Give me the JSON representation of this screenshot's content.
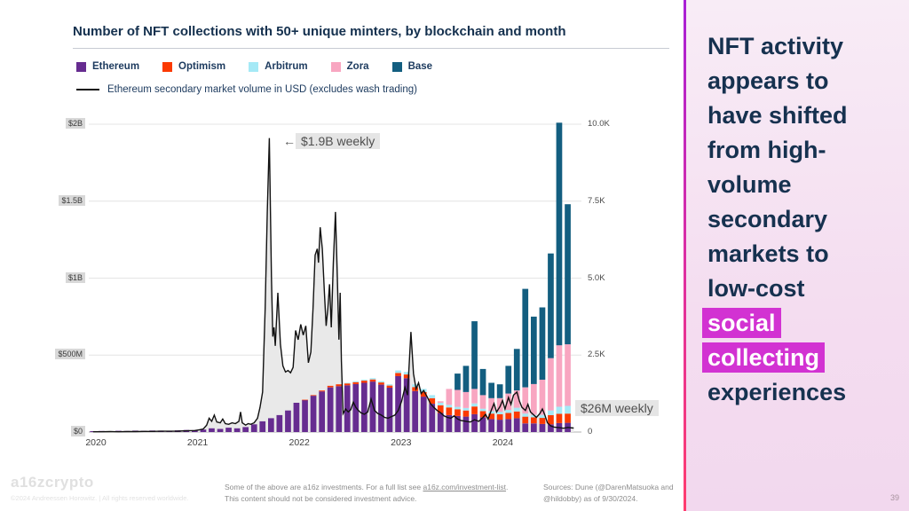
{
  "slide": {
    "logo": "a16zcrypto",
    "copyright": "©2024 Andreessen Horowitz.  |  All rights reserved worldwide.",
    "disclaimer_part1": "Some of the above are a16z investments. For a full list see ",
    "disclaimer_link": "a16z.com/investment-list",
    "disclaimer_part2": ".",
    "disclaimer_line2": "This content should not be considered investment advice.",
    "sources": "Sources: Dune (@DarenMatsuoka and @hildobby) as of 9/30/2024.",
    "page_number": "39"
  },
  "panel": {
    "lines": [
      {
        "text": "NFT activity",
        "highlight": false
      },
      {
        "text": "appears to",
        "highlight": false
      },
      {
        "text": "have shifted",
        "highlight": false
      },
      {
        "text": "from high-",
        "highlight": false
      },
      {
        "text": "volume",
        "highlight": false
      },
      {
        "text": "secondary",
        "highlight": false
      },
      {
        "text": "markets to",
        "highlight": false
      },
      {
        "text": "low-cost",
        "highlight": false
      },
      {
        "text": "social",
        "highlight": true
      },
      {
        "text": "collecting",
        "highlight": true
      },
      {
        "text": "experiences",
        "highlight": false
      }
    ],
    "highlight_color": "#d232d2",
    "text_color": "#16314f"
  },
  "chart_data": {
    "type": "combo-stacked-bar-line",
    "title": "Number of NFT collections with 50+ unique minters, by blockchain and month",
    "time_range": {
      "start": "2020-01",
      "end": "2024-09",
      "months": 57
    },
    "x_axis": {
      "labels": [
        "2020",
        "2021",
        "2022",
        "2023",
        "2024"
      ]
    },
    "left_axis": {
      "title": "Ethereum secondary volume (USD)",
      "ticks": [
        "$2B",
        "$1.5B",
        "$1B",
        "$500M",
        "$0"
      ],
      "max_musd": 2000
    },
    "right_axis": {
      "title": "NFT collections with 50+ unique minters",
      "ticks": [
        "10.0K",
        "7.5K",
        "5.0K",
        "2.5K",
        "0"
      ],
      "max_count": 10000
    },
    "legend": [
      {
        "label": "Ethereum",
        "color": "#662c90"
      },
      {
        "label": "Optimism",
        "color": "#fb3a02"
      },
      {
        "label": "Arbitrum",
        "color": "#a5e9f6"
      },
      {
        "label": "Zora",
        "color": "#f8a6c1"
      },
      {
        "label": "Base",
        "color": "#135e80"
      }
    ],
    "line_legend": {
      "label": "Ethereum secondary market volume in USD (excludes wash trading)",
      "color": "#111111",
      "area_fill": "#e9e9e9"
    },
    "annotations": [
      {
        "text": "$1.9B weekly",
        "points_to": "2021 line peak"
      },
      {
        "text": "$26M weekly",
        "points_to": "latest line value"
      }
    ],
    "series": [
      {
        "name": "Ethereum",
        "color": "#662c90",
        "values": [
          30,
          35,
          30,
          40,
          35,
          45,
          40,
          50,
          45,
          40,
          55,
          65,
          60,
          80,
          120,
          100,
          140,
          120,
          160,
          250,
          350,
          450,
          550,
          700,
          950,
          1040,
          1180,
          1320,
          1450,
          1490,
          1520,
          1560,
          1600,
          1640,
          1540,
          1440,
          1820,
          1750,
          1330,
          1150,
          920,
          620,
          550,
          520,
          500,
          580,
          480,
          420,
          400,
          420,
          450,
          280,
          280,
          260,
          250,
          290,
          300
        ]
      },
      {
        "name": "Optimism",
        "color": "#fb3a02",
        "values": [
          0,
          0,
          0,
          0,
          0,
          0,
          0,
          0,
          0,
          0,
          0,
          0,
          0,
          0,
          0,
          0,
          0,
          0,
          0,
          0,
          0,
          0,
          0,
          0,
          0,
          10,
          20,
          30,
          50,
          60,
          60,
          60,
          70,
          70,
          70,
          70,
          100,
          120,
          130,
          150,
          180,
          250,
          250,
          220,
          200,
          250,
          200,
          180,
          180,
          200,
          220,
          220,
          200,
          200,
          300,
          300,
          300
        ]
      },
      {
        "name": "Arbitrum",
        "color": "#a5e9f6",
        "values": [
          0,
          0,
          0,
          0,
          0,
          0,
          0,
          0,
          0,
          0,
          0,
          0,
          0,
          0,
          0,
          0,
          0,
          0,
          0,
          0,
          0,
          0,
          0,
          0,
          0,
          0,
          0,
          0,
          0,
          0,
          20,
          30,
          30,
          40,
          40,
          40,
          80,
          80,
          90,
          100,
          100,
          80,
          80,
          80,
          80,
          100,
          80,
          80,
          80,
          100,
          120,
          100,
          80,
          100,
          150,
          230,
          250
        ]
      },
      {
        "name": "Zora",
        "color": "#f8a6c1",
        "values": [
          0,
          0,
          0,
          0,
          0,
          0,
          0,
          0,
          0,
          0,
          0,
          0,
          0,
          0,
          0,
          0,
          0,
          0,
          0,
          0,
          0,
          0,
          0,
          0,
          0,
          0,
          0,
          0,
          0,
          0,
          0,
          0,
          0,
          0,
          0,
          0,
          0,
          0,
          0,
          0,
          0,
          50,
          520,
          550,
          520,
          470,
          440,
          420,
          440,
          530,
          560,
          850,
          1000,
          1140,
          1700,
          2000,
          2000
        ]
      },
      {
        "name": "Base",
        "color": "#135e80",
        "values": [
          0,
          0,
          0,
          0,
          0,
          0,
          0,
          0,
          0,
          0,
          0,
          0,
          0,
          0,
          0,
          0,
          0,
          0,
          0,
          0,
          0,
          0,
          0,
          0,
          0,
          0,
          0,
          0,
          0,
          0,
          0,
          0,
          0,
          0,
          0,
          0,
          0,
          0,
          0,
          0,
          0,
          0,
          0,
          530,
          850,
          2200,
          850,
          500,
          450,
          900,
          1350,
          3200,
          2190,
          2350,
          3400,
          7230,
          4550
        ]
      }
    ],
    "line_series": {
      "name": "Ethereum secondary market volume",
      "unit": "$M weekly",
      "points": [
        [
          0,
          2
        ],
        [
          1,
          2
        ],
        [
          2,
          3
        ],
        [
          3,
          2
        ],
        [
          4,
          3
        ],
        [
          5,
          3
        ],
        [
          6,
          4
        ],
        [
          7,
          4
        ],
        [
          8,
          5
        ],
        [
          9,
          5
        ],
        [
          10,
          6
        ],
        [
          11,
          8
        ],
        [
          12,
          10
        ],
        [
          12.5,
          14
        ],
        [
          13,
          20
        ],
        [
          13.4,
          45
        ],
        [
          13.7,
          90
        ],
        [
          14,
          70
        ],
        [
          14.3,
          110
        ],
        [
          14.6,
          65
        ],
        [
          15,
          60
        ],
        [
          15.3,
          85
        ],
        [
          15.6,
          55
        ],
        [
          16,
          50
        ],
        [
          16.4,
          60
        ],
        [
          16.8,
          55
        ],
        [
          17.2,
          70
        ],
        [
          17.4,
          130
        ],
        [
          17.6,
          60
        ],
        [
          18,
          45
        ],
        [
          18.3,
          55
        ],
        [
          18.6,
          50
        ],
        [
          19,
          60
        ],
        [
          19.4,
          90
        ],
        [
          19.7,
          160
        ],
        [
          20,
          260
        ],
        [
          20.3,
          800
        ],
        [
          20.55,
          1430
        ],
        [
          20.8,
          1910
        ],
        [
          21.05,
          1000
        ],
        [
          21.2,
          620
        ],
        [
          21.35,
          680
        ],
        [
          21.5,
          560
        ],
        [
          21.8,
          905
        ],
        [
          22.1,
          570
        ],
        [
          22.4,
          430
        ],
        [
          22.7,
          390
        ],
        [
          23,
          400
        ],
        [
          23.3,
          385
        ],
        [
          23.6,
          420
        ],
        [
          23.9,
          660
        ],
        [
          24.2,
          600
        ],
        [
          24.5,
          700
        ],
        [
          24.8,
          630
        ],
        [
          25.1,
          690
        ],
        [
          25.4,
          450
        ],
        [
          25.7,
          520
        ],
        [
          25.95,
          800
        ],
        [
          26.2,
          1150
        ],
        [
          26.45,
          1190
        ],
        [
          26.6,
          1100
        ],
        [
          26.8,
          1330
        ],
        [
          27.05,
          1190
        ],
        [
          27.3,
          900
        ],
        [
          27.5,
          690
        ],
        [
          27.7,
          800
        ],
        [
          27.9,
          960
        ],
        [
          28.1,
          680
        ],
        [
          28.35,
          1100
        ],
        [
          28.6,
          1430
        ],
        [
          28.8,
          1050
        ],
        [
          29,
          600
        ],
        [
          29.15,
          905
        ],
        [
          29.3,
          460
        ],
        [
          29.5,
          120
        ],
        [
          29.8,
          150
        ],
        [
          30.1,
          130
        ],
        [
          30.4,
          145
        ],
        [
          30.7,
          195
        ],
        [
          31,
          160
        ],
        [
          31.3,
          140
        ],
        [
          31.6,
          125
        ],
        [
          32,
          115
        ],
        [
          32.4,
          130
        ],
        [
          32.8,
          215
        ],
        [
          33.2,
          140
        ],
        [
          33.6,
          120
        ],
        [
          34,
          110
        ],
        [
          34.4,
          95
        ],
        [
          34.8,
          90
        ],
        [
          35.2,
          100
        ],
        [
          35.6,
          110
        ],
        [
          36,
          140
        ],
        [
          36.4,
          200
        ],
        [
          36.8,
          290
        ],
        [
          37.1,
          240
        ],
        [
          37.5,
          650
        ],
        [
          37.8,
          380
        ],
        [
          38.1,
          280
        ],
        [
          38.4,
          320
        ],
        [
          38.7,
          250
        ],
        [
          39,
          270
        ],
        [
          39.4,
          230
        ],
        [
          39.8,
          185
        ],
        [
          40.2,
          160
        ],
        [
          40.6,
          140
        ],
        [
          41,
          125
        ],
        [
          41.4,
          105
        ],
        [
          41.8,
          95
        ],
        [
          42.2,
          90
        ],
        [
          42.6,
          105
        ],
        [
          43,
          85
        ],
        [
          43.4,
          75
        ],
        [
          44,
          70
        ],
        [
          44.5,
          65
        ],
        [
          45,
          80
        ],
        [
          45.5,
          70
        ],
        [
          46,
          95
        ],
        [
          46.3,
          115
        ],
        [
          46.6,
          85
        ],
        [
          47,
          145
        ],
        [
          47.3,
          185
        ],
        [
          47.6,
          130
        ],
        [
          48,
          165
        ],
        [
          48.3,
          205
        ],
        [
          48.6,
          150
        ],
        [
          49,
          225
        ],
        [
          49.3,
          180
        ],
        [
          49.6,
          240
        ],
        [
          50,
          260
        ],
        [
          50.3,
          200
        ],
        [
          50.6,
          160
        ],
        [
          51,
          140
        ],
        [
          51.3,
          180
        ],
        [
          51.6,
          130
        ],
        [
          52,
          110
        ],
        [
          52.3,
          95
        ],
        [
          52.7,
          120
        ],
        [
          53,
          150
        ],
        [
          53.3,
          110
        ],
        [
          53.6,
          60
        ],
        [
          54,
          40
        ],
        [
          54.4,
          32
        ],
        [
          55,
          28
        ],
        [
          55.5,
          25
        ],
        [
          56,
          30
        ],
        [
          56.7,
          26
        ]
      ]
    },
    "grid": true,
    "legend_position": "top-left"
  }
}
